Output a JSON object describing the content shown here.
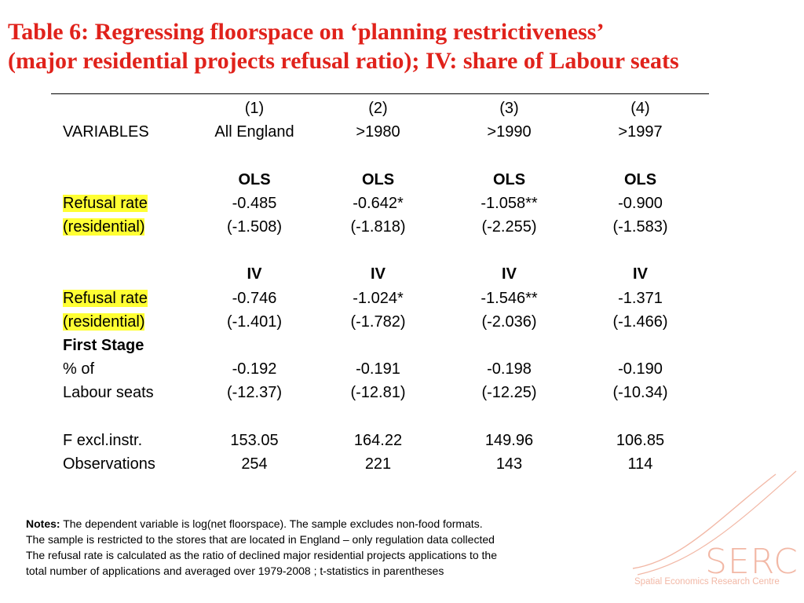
{
  "title": {
    "line1": "Table 6: Regressing floorspace on ‘planning restrictiveness’",
    "line2": "(major residential projects refusal ratio); IV: share of Labour seats"
  },
  "table": {
    "col_numbers": [
      "(1)",
      "(2)",
      "(3)",
      "(4)"
    ],
    "variables_label": "VARIABLES",
    "col_samples": [
      "All England",
      ">1980",
      ">1990",
      ">1997"
    ],
    "ols": {
      "label": "OLS",
      "row_label_1": "Refusal rate",
      "row_label_2": "(residential)",
      "coef": [
        "-0.485",
        "-0.642*",
        "-1.058**",
        "-0.900"
      ],
      "tstat": [
        "(-1.508)",
        "(-1.818)",
        "(-2.255)",
        "(-1.583)"
      ]
    },
    "iv": {
      "label": "IV",
      "row_label_1": "Refusal rate",
      "row_label_2": "(residential)",
      "coef": [
        "-0.746",
        "-1.024*",
        "-1.546**",
        "-1.371"
      ],
      "tstat": [
        "(-1.401)",
        "(-1.782)",
        "(-2.036)",
        "(-1.466)"
      ]
    },
    "first_stage": {
      "label": "First Stage",
      "row_label_1": "% of",
      "row_label_2": "Labour seats",
      "coef": [
        "-0.192",
        "-0.191",
        "-0.198",
        "-0.190"
      ],
      "tstat": [
        "(-12.37)",
        "(-12.81)",
        "(-12.25)",
        "(-10.34)"
      ]
    },
    "f_stat": {
      "label": "F excl.instr.",
      "values": [
        "153.05",
        "164.22",
        "149.96",
        "106.85"
      ]
    },
    "observations": {
      "label": "Observations",
      "values": [
        "254",
        "221",
        "143",
        "114"
      ]
    }
  },
  "notes": {
    "label": "Notes:",
    "line1": "The dependent variable is log(net floorspace). The sample excludes non-food formats.",
    "line2": "The sample is restricted to the stores that are located in England – only regulation data collected",
    "line3": "The refusal rate is calculated as the ratio of declined major residential projects applications to the",
    "line4": "total number of applications and averaged over 1979-2008 ; t-statistics in parentheses"
  },
  "logo": {
    "wordmark": "SERC",
    "tagline": "Spatial Economics Research Centre",
    "color": "#f2b8a6"
  }
}
